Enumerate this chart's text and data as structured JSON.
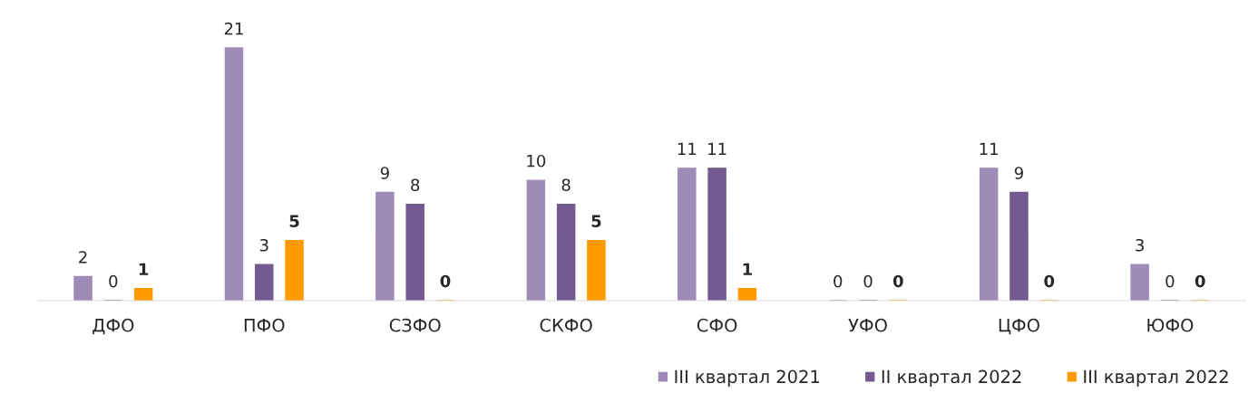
{
  "chart_data": {
    "type": "bar",
    "categories": [
      "ДФО",
      "ПФО",
      "СЗФО",
      "СКФО",
      "СФО",
      "УФО",
      "ЦФО",
      "ЮФО"
    ],
    "series": [
      {
        "name": "III квартал 2021",
        "color": "#9e8bb8",
        "values": [
          2,
          21,
          9,
          10,
          11,
          0,
          11,
          3
        ]
      },
      {
        "name": "II квартал 2022",
        "color": "#735a90",
        "values": [
          0,
          3,
          8,
          8,
          11,
          0,
          9,
          0
        ]
      },
      {
        "name": "III квартал 2022",
        "color": "#ff9a00",
        "values": [
          1,
          5,
          0,
          5,
          1,
          0,
          0,
          0
        ]
      }
    ],
    "data_labels": true,
    "legend": "bottom right",
    "grid": false
  }
}
